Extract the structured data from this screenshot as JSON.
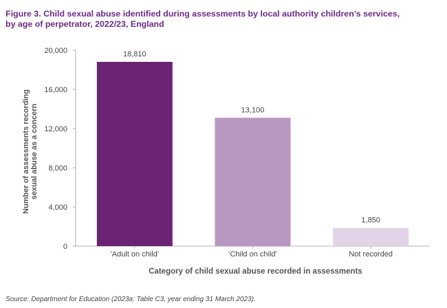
{
  "chart_data": {
    "type": "bar",
    "title_lines": [
      "Figure 3. Child sexual abuse identified during assessments by local authority children’s services,",
      "by age of perpetrator, 2022/23, England"
    ],
    "categories": [
      "‘Adult on child’",
      "‘Child on child’",
      "Not recorded"
    ],
    "values": [
      18810,
      13100,
      1850
    ],
    "value_labels": [
      "18,810",
      "13,100",
      "1,850"
    ],
    "bar_colors": [
      "#6b2473",
      "#b897c1",
      "#e2d3e6"
    ],
    "ylabel_lines": [
      "Number of assessments recording",
      "sexual abuse as a concern"
    ],
    "xlabel": "Category of child sexual abuse recorded in assessments",
    "ylim": [
      0,
      20000
    ],
    "yticks": [
      0,
      4000,
      8000,
      12000,
      16000,
      20000
    ],
    "ytick_labels": [
      "0",
      "4,000",
      "8,000",
      "12,000",
      "16,000",
      "20,000"
    ],
    "grid": false
  },
  "source": "Source: Department for Education (2023a: Table C3, year ending 31 March 2023)."
}
